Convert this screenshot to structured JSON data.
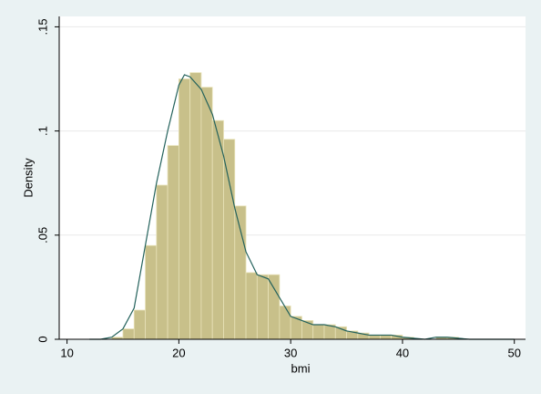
{
  "chart_data": {
    "type": "histogram",
    "x_label": "bmi",
    "y_label": "Density",
    "bins": [
      14,
      15,
      16,
      17,
      18,
      19,
      20,
      21,
      22,
      23,
      24,
      25,
      26,
      27,
      28,
      29,
      30,
      31,
      32,
      33,
      34,
      35,
      36,
      37,
      38,
      39,
      40,
      41,
      42,
      43,
      44,
      45,
      46
    ],
    "values": [
      0.001,
      0.005,
      0.014,
      0.045,
      0.074,
      0.093,
      0.125,
      0.128,
      0.121,
      0.105,
      0.096,
      0.064,
      0.032,
      0.031,
      0.031,
      0.016,
      0.011,
      0.009,
      0.007,
      0.007,
      0.006,
      0.004,
      0.003,
      0.002,
      0.002,
      0.002,
      0.001,
      0,
      0,
      0.001,
      0.001,
      0
    ],
    "color": "#c8c08a",
    "density_curve": {
      "color": "#24625c",
      "x": [
        12,
        13,
        14,
        15,
        16,
        17,
        18,
        19,
        20,
        20.5,
        21,
        22,
        23,
        24,
        25,
        26,
        27,
        28,
        29,
        30,
        31,
        32,
        33,
        34,
        35,
        36,
        37,
        38,
        39,
        40,
        41,
        42,
        43,
        44,
        45,
        46,
        48,
        50
      ],
      "values": [
        0,
        0,
        0.001,
        0.005,
        0.015,
        0.045,
        0.075,
        0.1,
        0.122,
        0.127,
        0.126,
        0.12,
        0.108,
        0.088,
        0.063,
        0.042,
        0.031,
        0.029,
        0.02,
        0.011,
        0.009,
        0.007,
        0.007,
        0.006,
        0.004,
        0.003,
        0.002,
        0.002,
        0.002,
        0.001,
        0.0005,
        0,
        0.001,
        0.001,
        0.0005,
        0,
        0,
        0
      ]
    },
    "xlim": [
      9.3,
      51
    ],
    "xticks": [
      10,
      20,
      30,
      40,
      50
    ],
    "ylim": [
      0,
      0.155
    ],
    "yticks": [
      0,
      {
        "value": 0.05,
        "label": ".05"
      },
      {
        "value": 0.1,
        "label": ".1"
      },
      {
        "value": 0.15,
        "label": ".15"
      }
    ],
    "grid": true
  }
}
